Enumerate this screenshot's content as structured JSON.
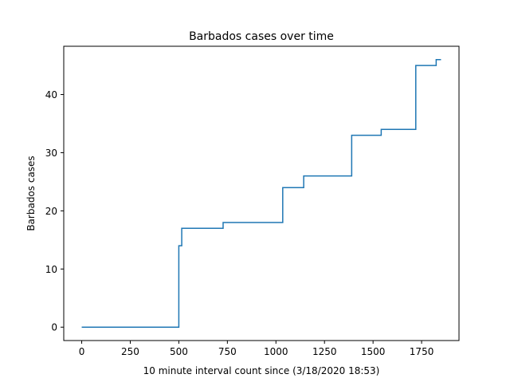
{
  "chart_data": {
    "type": "line",
    "title": "Barbados cases over time",
    "xlabel": "10 minute interval count since (3/18/2020 18:53)",
    "ylabel": "Barbados cases",
    "xlim": [
      -92.5,
      1942.5
    ],
    "ylim": [
      -2.3,
      48.3
    ],
    "xticks": [
      0,
      250,
      500,
      750,
      1000,
      1250,
      1500,
      1750
    ],
    "yticks": [
      0,
      10,
      20,
      30,
      40
    ],
    "grid": false,
    "legend": "none",
    "line_color": "#1f77b4",
    "series": [
      {
        "step": "post",
        "points": [
          [
            0,
            0
          ],
          [
            500,
            14
          ],
          [
            515,
            17
          ],
          [
            728,
            18
          ],
          [
            1035,
            24
          ],
          [
            1143,
            26
          ],
          [
            1390,
            33
          ],
          [
            1542,
            34
          ],
          [
            1720,
            45
          ],
          [
            1825,
            46
          ],
          [
            1850,
            46
          ]
        ]
      }
    ]
  }
}
